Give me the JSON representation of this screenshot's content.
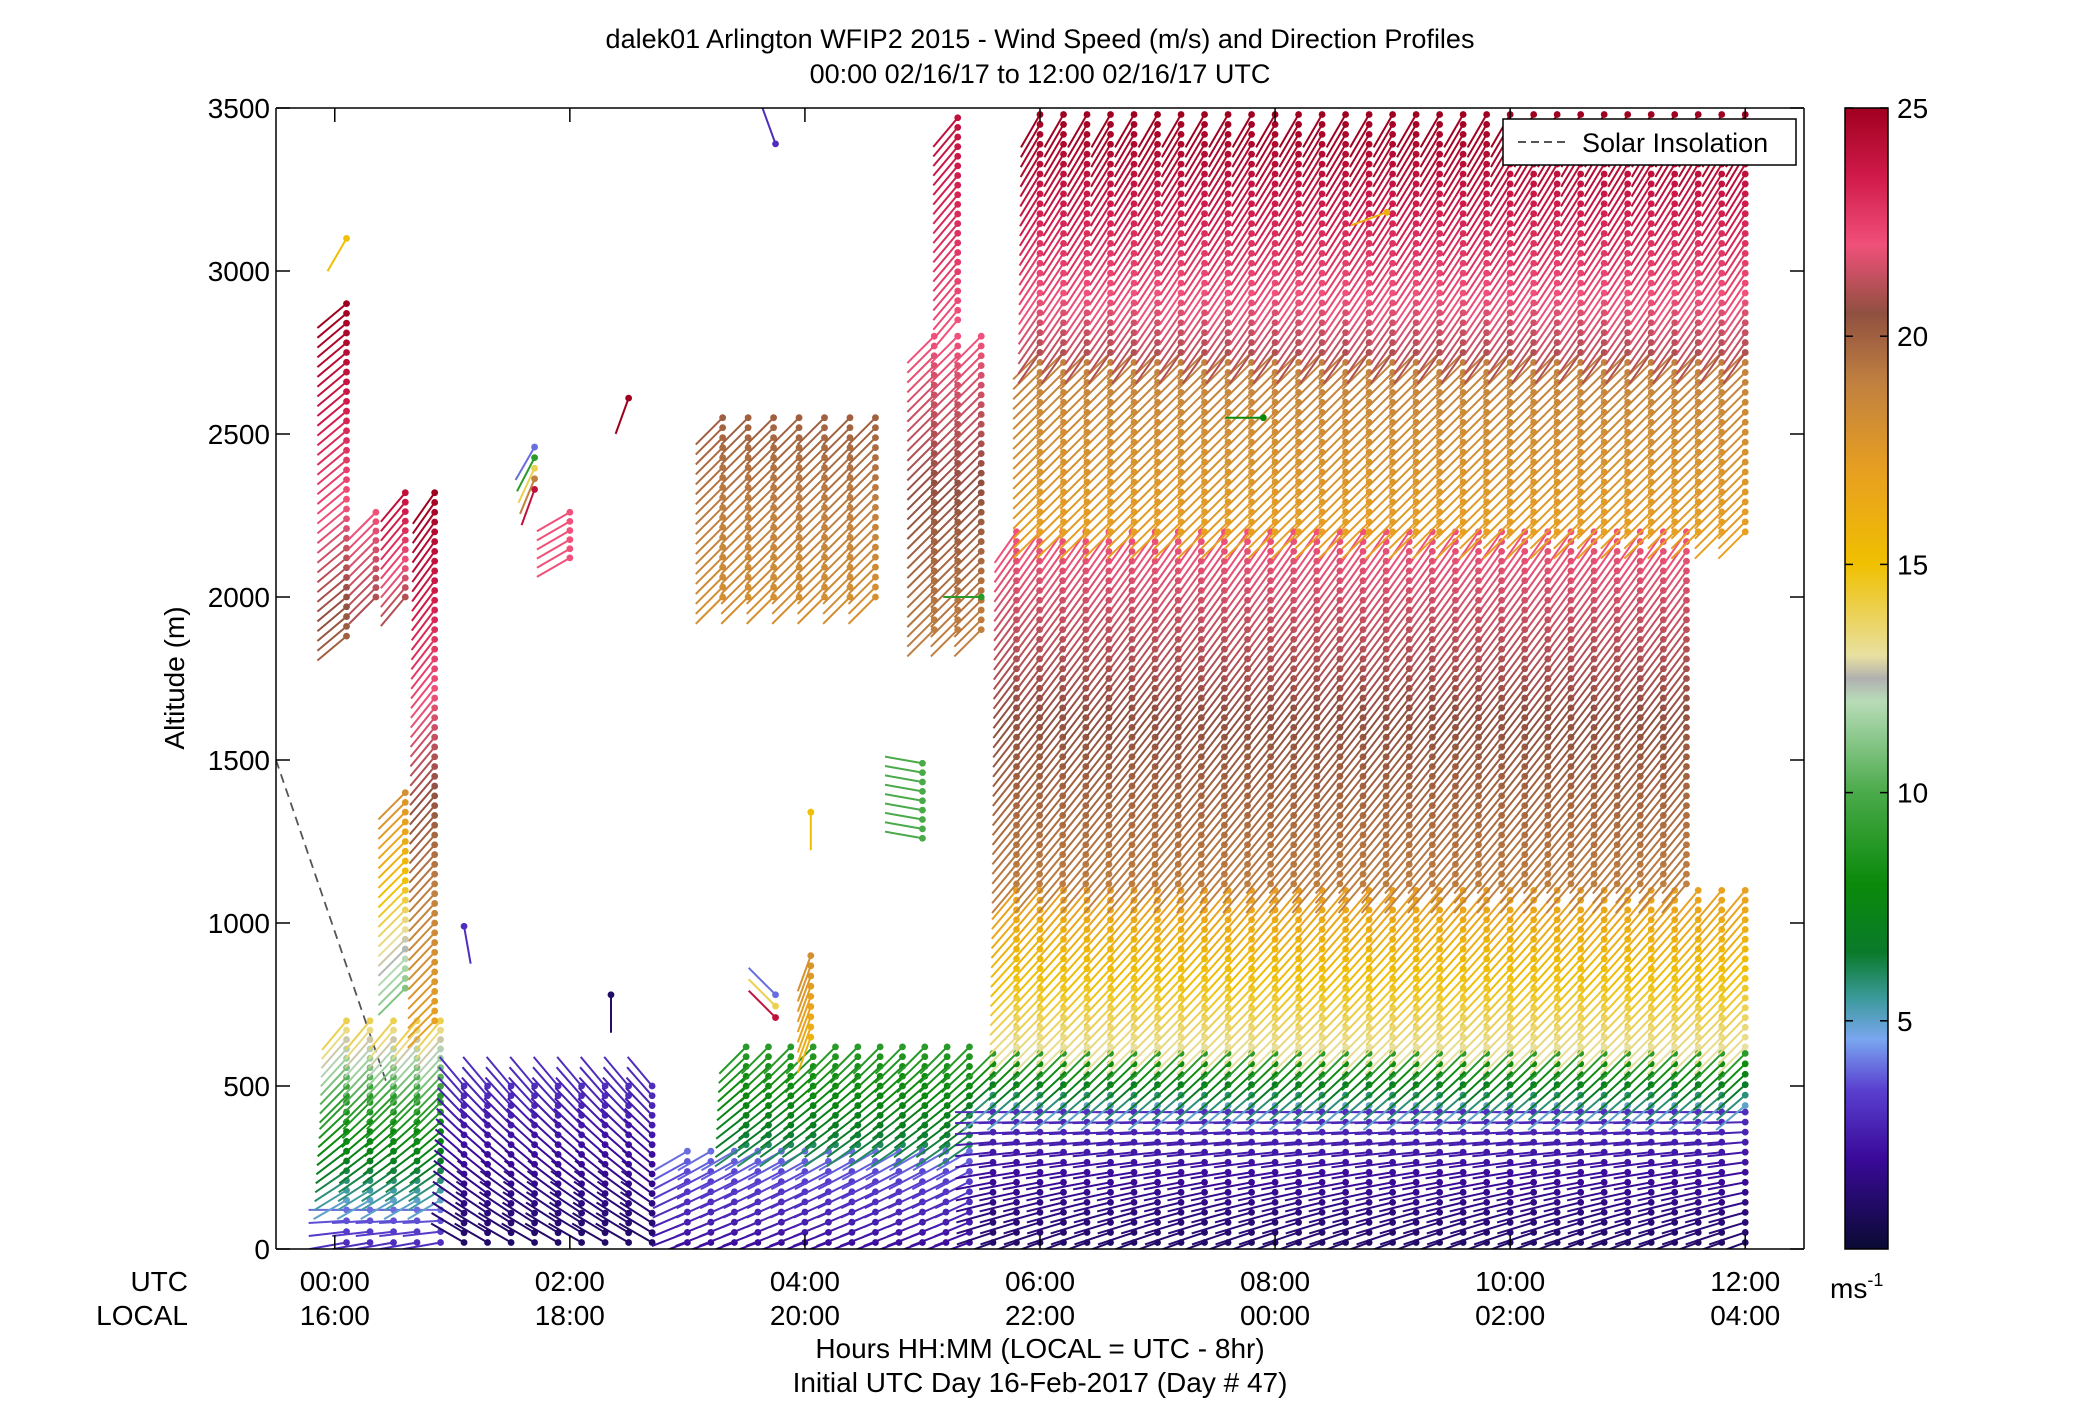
{
  "chart_data": {
    "type": "scatter",
    "title": "dalek01 Arlington WFIP2 2015 - Wind Speed (m/s) and Direction Profiles",
    "subtitle": "00:00 02/16/17 to 12:00 02/16/17  UTC",
    "ylabel": "Altitude (m)",
    "xlabel": "Hours HH:MM  (LOCAL = UTC - 8hr)",
    "xlabel2": "Initial UTC Day 16-Feb-2017 (Day # 47)",
    "row_label_utc": "UTC",
    "row_label_local": "LOCAL",
    "xlim_hours": [
      -0.5,
      12.5
    ],
    "ylim": [
      0,
      3500
    ],
    "yticks": [
      0,
      500,
      1000,
      1500,
      2000,
      2500,
      3000,
      3500
    ],
    "ytick_labels": [
      "0",
      "500",
      "1000",
      "1500",
      "2000",
      "2500",
      "3000",
      "3500"
    ],
    "xticks_hours": [
      0,
      2,
      4,
      6,
      8,
      10,
      12
    ],
    "xtick_labels_utc": [
      "00:00",
      "02:00",
      "04:00",
      "06:00",
      "08:00",
      "10:00",
      "12:00"
    ],
    "xtick_labels_local": [
      "16:00",
      "18:00",
      "20:00",
      "22:00",
      "00:00",
      "02:00",
      "04:00"
    ],
    "legend": {
      "entries": [
        "Solar Insolation"
      ],
      "location": "top-right"
    },
    "colorbar": {
      "label": "ms",
      "label_superscript": "-1",
      "min": 0,
      "max": 25,
      "tick_values": [
        5,
        10,
        15,
        20,
        25
      ],
      "tick_labels": [
        "5",
        "10",
        "15",
        "20",
        "25"
      ],
      "stops": [
        {
          "v": 0,
          "c": "#0a0a33"
        },
        {
          "v": 2,
          "c": "#3a0a9a"
        },
        {
          "v": 3.5,
          "c": "#5a40d0"
        },
        {
          "v": 4.6,
          "c": "#7aa6f0"
        },
        {
          "v": 5.5,
          "c": "#3a9a9a"
        },
        {
          "v": 6.5,
          "c": "#0a7a2a"
        },
        {
          "v": 8,
          "c": "#0a8a0a"
        },
        {
          "v": 10,
          "c": "#4aaa4a"
        },
        {
          "v": 12,
          "c": "#b8dcb8"
        },
        {
          "v": 12.5,
          "c": "#b0b0b0"
        },
        {
          "v": 13,
          "c": "#e8e0a0"
        },
        {
          "v": 15,
          "c": "#f0c000"
        },
        {
          "v": 17,
          "c": "#e8a020"
        },
        {
          "v": 19,
          "c": "#c08040"
        },
        {
          "v": 20.5,
          "c": "#905040"
        },
        {
          "v": 22,
          "c": "#f0507a"
        },
        {
          "v": 23.5,
          "c": "#d01a4a"
        },
        {
          "v": 25,
          "c": "#a00020"
        }
      ]
    },
    "solar_insolation": {
      "style": "dashed",
      "color": "#555555",
      "points": [
        [
          -0.5,
          1500
        ],
        [
          0.45,
          500
        ]
      ]
    },
    "wind_profiles": {
      "note_units": "time in UTC hours, altitude in m, speed in m/s, direction in degrees (from)",
      "segments": [
        {
          "t0": 0.1,
          "t1": 0.9,
          "z_bot": 20,
          "z_top": 120,
          "spd_bot": 3,
          "spd_top": 4,
          "dir_bot": 260,
          "dir_top": 270
        },
        {
          "t0": 0.1,
          "t1": 0.9,
          "z_bot": 150,
          "z_top": 450,
          "spd_bot": 5,
          "spd_top": 9,
          "dir_bot": 240,
          "dir_top": 225
        },
        {
          "t0": 0.1,
          "t1": 0.9,
          "z_bot": 470,
          "z_top": 700,
          "spd_bot": 9,
          "spd_top": 14,
          "dir_bot": 225,
          "dir_top": 220
        },
        {
          "t0": 0.1,
          "t1": 0.1,
          "z_bot": 1880,
          "z_top": 2900,
          "spd_bot": 20,
          "spd_top": 25,
          "dir_bot": 230,
          "dir_top": 230
        },
        {
          "t0": 0.1,
          "t1": 0.1,
          "z_bot": 3100,
          "z_top": 3100,
          "spd_bot": 15,
          "spd_top": 15,
          "dir_bot": 210,
          "dir_top": 210
        },
        {
          "t0": 0.35,
          "t1": 0.35,
          "z_bot": 2000,
          "z_top": 2260,
          "spd_bot": 21,
          "spd_top": 22,
          "dir_bot": 225,
          "dir_top": 225
        },
        {
          "t0": 0.6,
          "t1": 0.6,
          "z_bot": 2000,
          "z_top": 2320,
          "spd_bot": 21,
          "spd_top": 24,
          "dir_bot": 220,
          "dir_top": 220
        },
        {
          "t0": 0.6,
          "t1": 0.6,
          "z_bot": 800,
          "z_top": 1400,
          "spd_bot": 11,
          "spd_top": 18,
          "dir_bot": 225,
          "dir_top": 225
        },
        {
          "t0": 0.85,
          "t1": 0.85,
          "z_bot": 700,
          "z_top": 2320,
          "spd_bot": 17,
          "spd_top": 25,
          "dir_bot": 225,
          "dir_top": 215
        },
        {
          "t0": 1.1,
          "t1": 2.7,
          "z_bot": 20,
          "z_top": 500,
          "spd_bot": 1,
          "spd_top": 3,
          "dir_bot": 300,
          "dir_top": 320
        },
        {
          "t0": 1.7,
          "t1": 1.7,
          "z_bot": 2330,
          "z_top": 2460,
          "spd_bot": 24,
          "spd_top": 4,
          "dir_bot": 200,
          "dir_top": 210
        },
        {
          "t0": 2.0,
          "t1": 2.0,
          "z_bot": 2120,
          "z_top": 2260,
          "spd_bot": 22,
          "spd_top": 22,
          "dir_bot": 240,
          "dir_top": 240
        },
        {
          "t0": 2.5,
          "t1": 2.5,
          "z_bot": 2610,
          "z_top": 2610,
          "spd_bot": 25,
          "spd_top": 25,
          "dir_bot": 200,
          "dir_top": 200
        },
        {
          "t0": 1.1,
          "t1": 1.1,
          "z_bot": 990,
          "z_top": 990,
          "spd_bot": 3,
          "spd_top": 3,
          "dir_bot": 170,
          "dir_top": 170
        },
        {
          "t0": 2.35,
          "t1": 2.35,
          "z_bot": 780,
          "z_top": 780,
          "spd_bot": 1,
          "spd_top": 1,
          "dir_bot": 180,
          "dir_top": 180
        },
        {
          "t0": 3.0,
          "t1": 5.4,
          "z_bot": 20,
          "z_top": 300,
          "spd_bot": 2,
          "spd_top": 4,
          "dir_bot": 250,
          "dir_top": 240
        },
        {
          "t0": 3.5,
          "t1": 5.4,
          "z_bot": 320,
          "z_top": 620,
          "spd_bot": 6,
          "spd_top": 9,
          "dir_bot": 235,
          "dir_top": 225
        },
        {
          "t0": 3.3,
          "t1": 4.6,
          "z_bot": 2000,
          "z_top": 2550,
          "spd_bot": 18,
          "spd_top": 20,
          "dir_bot": 225,
          "dir_top": 225
        },
        {
          "t0": 4.05,
          "t1": 4.05,
          "z_bot": 650,
          "z_top": 900,
          "spd_bot": 16,
          "spd_top": 18,
          "dir_bot": 200,
          "dir_top": 200
        },
        {
          "t0": 4.05,
          "t1": 4.05,
          "z_bot": 1340,
          "z_top": 1340,
          "spd_bot": 15,
          "spd_top": 15,
          "dir_bot": 180,
          "dir_top": 180
        },
        {
          "t0": 3.75,
          "t1": 3.75,
          "z_bot": 3390,
          "z_top": 3390,
          "spd_bot": 3,
          "spd_top": 3,
          "dir_bot": 340,
          "dir_top": 340
        },
        {
          "t0": 3.75,
          "t1": 3.75,
          "z_bot": 710,
          "z_top": 780,
          "spd_bot": 24,
          "spd_top": 4,
          "dir_bot": 315,
          "dir_top": 315
        },
        {
          "t0": 5.0,
          "t1": 5.0,
          "z_bot": 1260,
          "z_top": 1490,
          "spd_bot": 10,
          "spd_top": 10,
          "dir_bot": 280,
          "dir_top": 280
        },
        {
          "t0": 5.1,
          "t1": 5.5,
          "z_bot": 1900,
          "z_top": 2800,
          "spd_bot": 19,
          "spd_top": 22,
          "dir_bot": 225,
          "dir_top": 225
        },
        {
          "t0": 5.3,
          "t1": 5.3,
          "z_bot": 2850,
          "z_top": 3470,
          "spd_bot": 22,
          "spd_top": 24,
          "dir_bot": 220,
          "dir_top": 220
        },
        {
          "t0": 5.6,
          "t1": 12.0,
          "z_bot": 20,
          "z_top": 420,
          "spd_bot": 1,
          "spd_top": 3,
          "dir_bot": 250,
          "dir_top": 270
        },
        {
          "t0": 5.6,
          "t1": 12.0,
          "z_bot": 440,
          "z_top": 600,
          "spd_bot": 5,
          "spd_top": 9,
          "dir_bot": 230,
          "dir_top": 225
        },
        {
          "t0": 5.8,
          "t1": 12.0,
          "z_bot": 620,
          "z_top": 1100,
          "spd_bot": 13,
          "spd_top": 17,
          "dir_bot": 225,
          "dir_top": 220
        },
        {
          "t0": 5.8,
          "t1": 11.5,
          "z_bot": 1120,
          "z_top": 2200,
          "spd_bot": 19,
          "spd_top": 22,
          "dir_bot": 220,
          "dir_top": 215
        },
        {
          "t0": 6.0,
          "t1": 12.0,
          "z_bot": 2200,
          "z_top": 2750,
          "spd_bot": 17,
          "spd_top": 19,
          "dir_bot": 225,
          "dir_top": 225
        },
        {
          "t0": 6.0,
          "t1": 12.0,
          "z_bot": 2750,
          "z_top": 3480,
          "spd_bot": 21,
          "spd_top": 25,
          "dir_bot": 215,
          "dir_top": 210
        },
        {
          "t0": 8.95,
          "t1": 8.95,
          "z_bot": 3180,
          "z_top": 3180,
          "spd_bot": 16,
          "spd_top": 16,
          "dir_bot": 250,
          "dir_top": 250
        },
        {
          "t0": 7.9,
          "t1": 7.9,
          "z_bot": 2550,
          "z_top": 2550,
          "spd_bot": 8,
          "spd_top": 8,
          "dir_bot": 270,
          "dir_top": 270
        },
        {
          "t0": 5.5,
          "t1": 5.5,
          "z_bot": 2000,
          "z_top": 2000,
          "spd_bot": 9,
          "spd_top": 9,
          "dir_bot": 270,
          "dir_top": 270
        }
      ]
    }
  }
}
